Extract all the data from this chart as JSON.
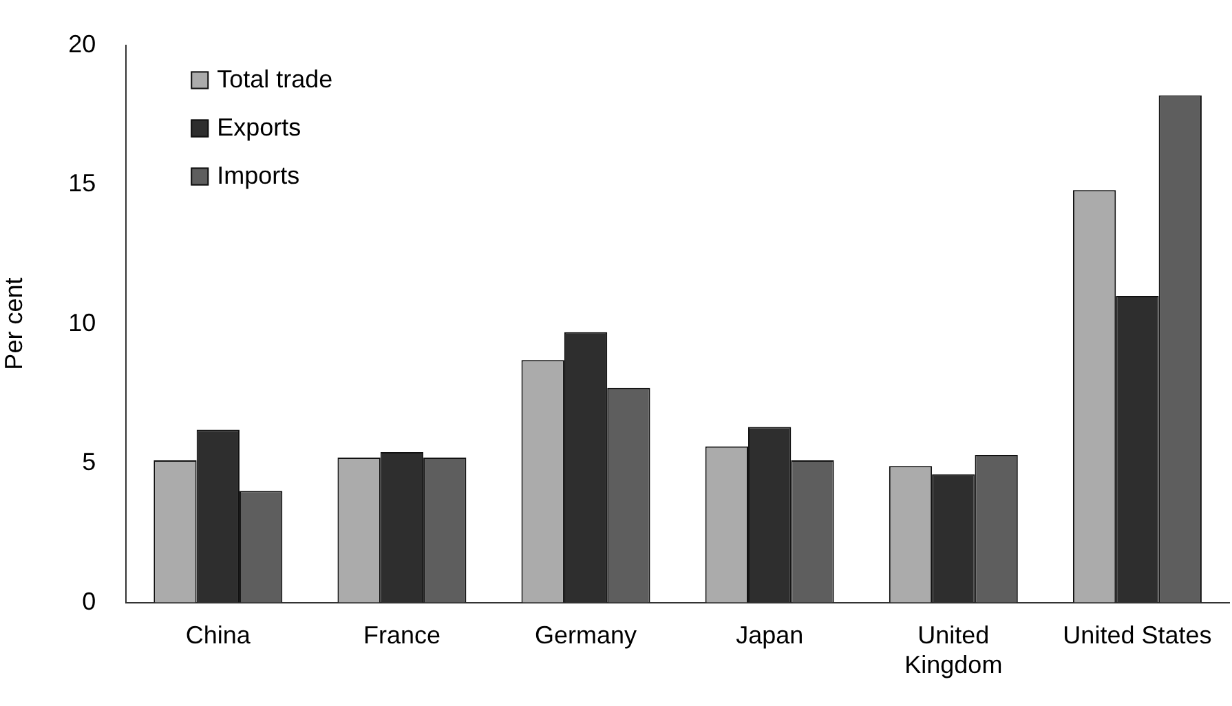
{
  "chart_data": {
    "type": "bar",
    "ylabel": "Per cent",
    "categories": [
      "China",
      "France",
      "Germany",
      "Japan",
      "United Kingdom",
      "United States"
    ],
    "series": [
      {
        "name": "Total trade",
        "color": "#ababab",
        "values": [
          5.1,
          5.2,
          8.7,
          5.6,
          4.9,
          14.8
        ]
      },
      {
        "name": "Exports",
        "color": "#2e2e2e",
        "values": [
          6.2,
          5.4,
          9.7,
          6.3,
          4.6,
          11.0
        ]
      },
      {
        "name": "Imports",
        "color": "#5e5e5e",
        "values": [
          4.0,
          5.2,
          7.7,
          5.1,
          5.3,
          18.2
        ]
      }
    ],
    "ylim": [
      0,
      20
    ],
    "yticks": [
      0,
      5,
      10,
      15,
      20
    ],
    "legend": "top left"
  }
}
